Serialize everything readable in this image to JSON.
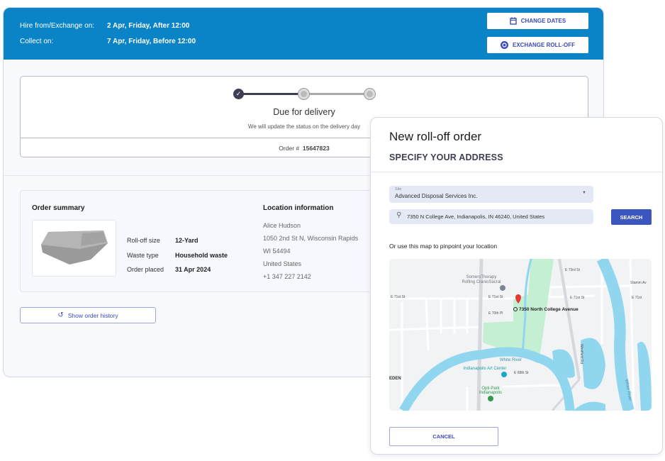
{
  "header": {
    "hire_label": "Hire from/Exchange on:",
    "hire_value": "2 Apr, Friday, After 12:00",
    "collect_label": "Collect on:",
    "collect_value": "7 Apr, Friday, Before 12:00",
    "change_dates": "CHANGE DATES",
    "exchange": "EXCHANGE ROLL-OFF"
  },
  "status": {
    "title": "Due for delivery",
    "subtitle": "We will update the status on the delivery day",
    "order_label": "Order #",
    "order_number": "15647823",
    "steps_completed": 1,
    "steps_total": 3
  },
  "summary": {
    "title": "Order summary",
    "rows": [
      {
        "label": "Roll-off size",
        "value": "12-Yard"
      },
      {
        "label": "Waste type",
        "value": "Household waste"
      },
      {
        "label": "Order placed",
        "value": "31 Apr 2024"
      }
    ]
  },
  "location": {
    "title": "Location information",
    "lines": [
      "Alice Hudson",
      "1050 2nd St N, Wisconsin Rapids",
      "WI 54494",
      "United States",
      "+1 347 227 2142"
    ]
  },
  "history_button": "Show order history",
  "modal": {
    "title": "New roll-off order",
    "subtitle": "SPECIFY YOUR ADDRESS",
    "site_label": "Site",
    "site_value": "Advanced Disposal Services Inc.",
    "search_value": "7350 N College Ave, Indianapolis, IN 46240, United States",
    "search_button": "SEARCH",
    "map_hint": "Or use this map to pinpoint your location",
    "cancel": "CANCEL"
  },
  "map": {
    "pin_label": "7350 North College Avenue",
    "labels": {
      "somers": "SomersTherapy",
      "rolfing": "Rolfing CranioSacral",
      "e71": "E 71st St",
      "e71b": "E 71st St",
      "e70": "E 70th Pl",
      "e73": "E 73rd St",
      "river1": "White River",
      "river2": "White River",
      "art": "Indianapolis Art Center",
      "opti1": "Opti-Park",
      "opti2": "Indianapolis",
      "westfield": "Westfield Rd",
      "eden": "EDEN",
      "e68": "E 68th St",
      "stamm": "Stamm Av",
      "e71c": "E 71st"
    }
  },
  "colors": {
    "header": "#0a84c6",
    "accent": "#3b4bb8",
    "water": "#8fd6ee",
    "park": "#c4efd3",
    "pin": "#e53935"
  }
}
